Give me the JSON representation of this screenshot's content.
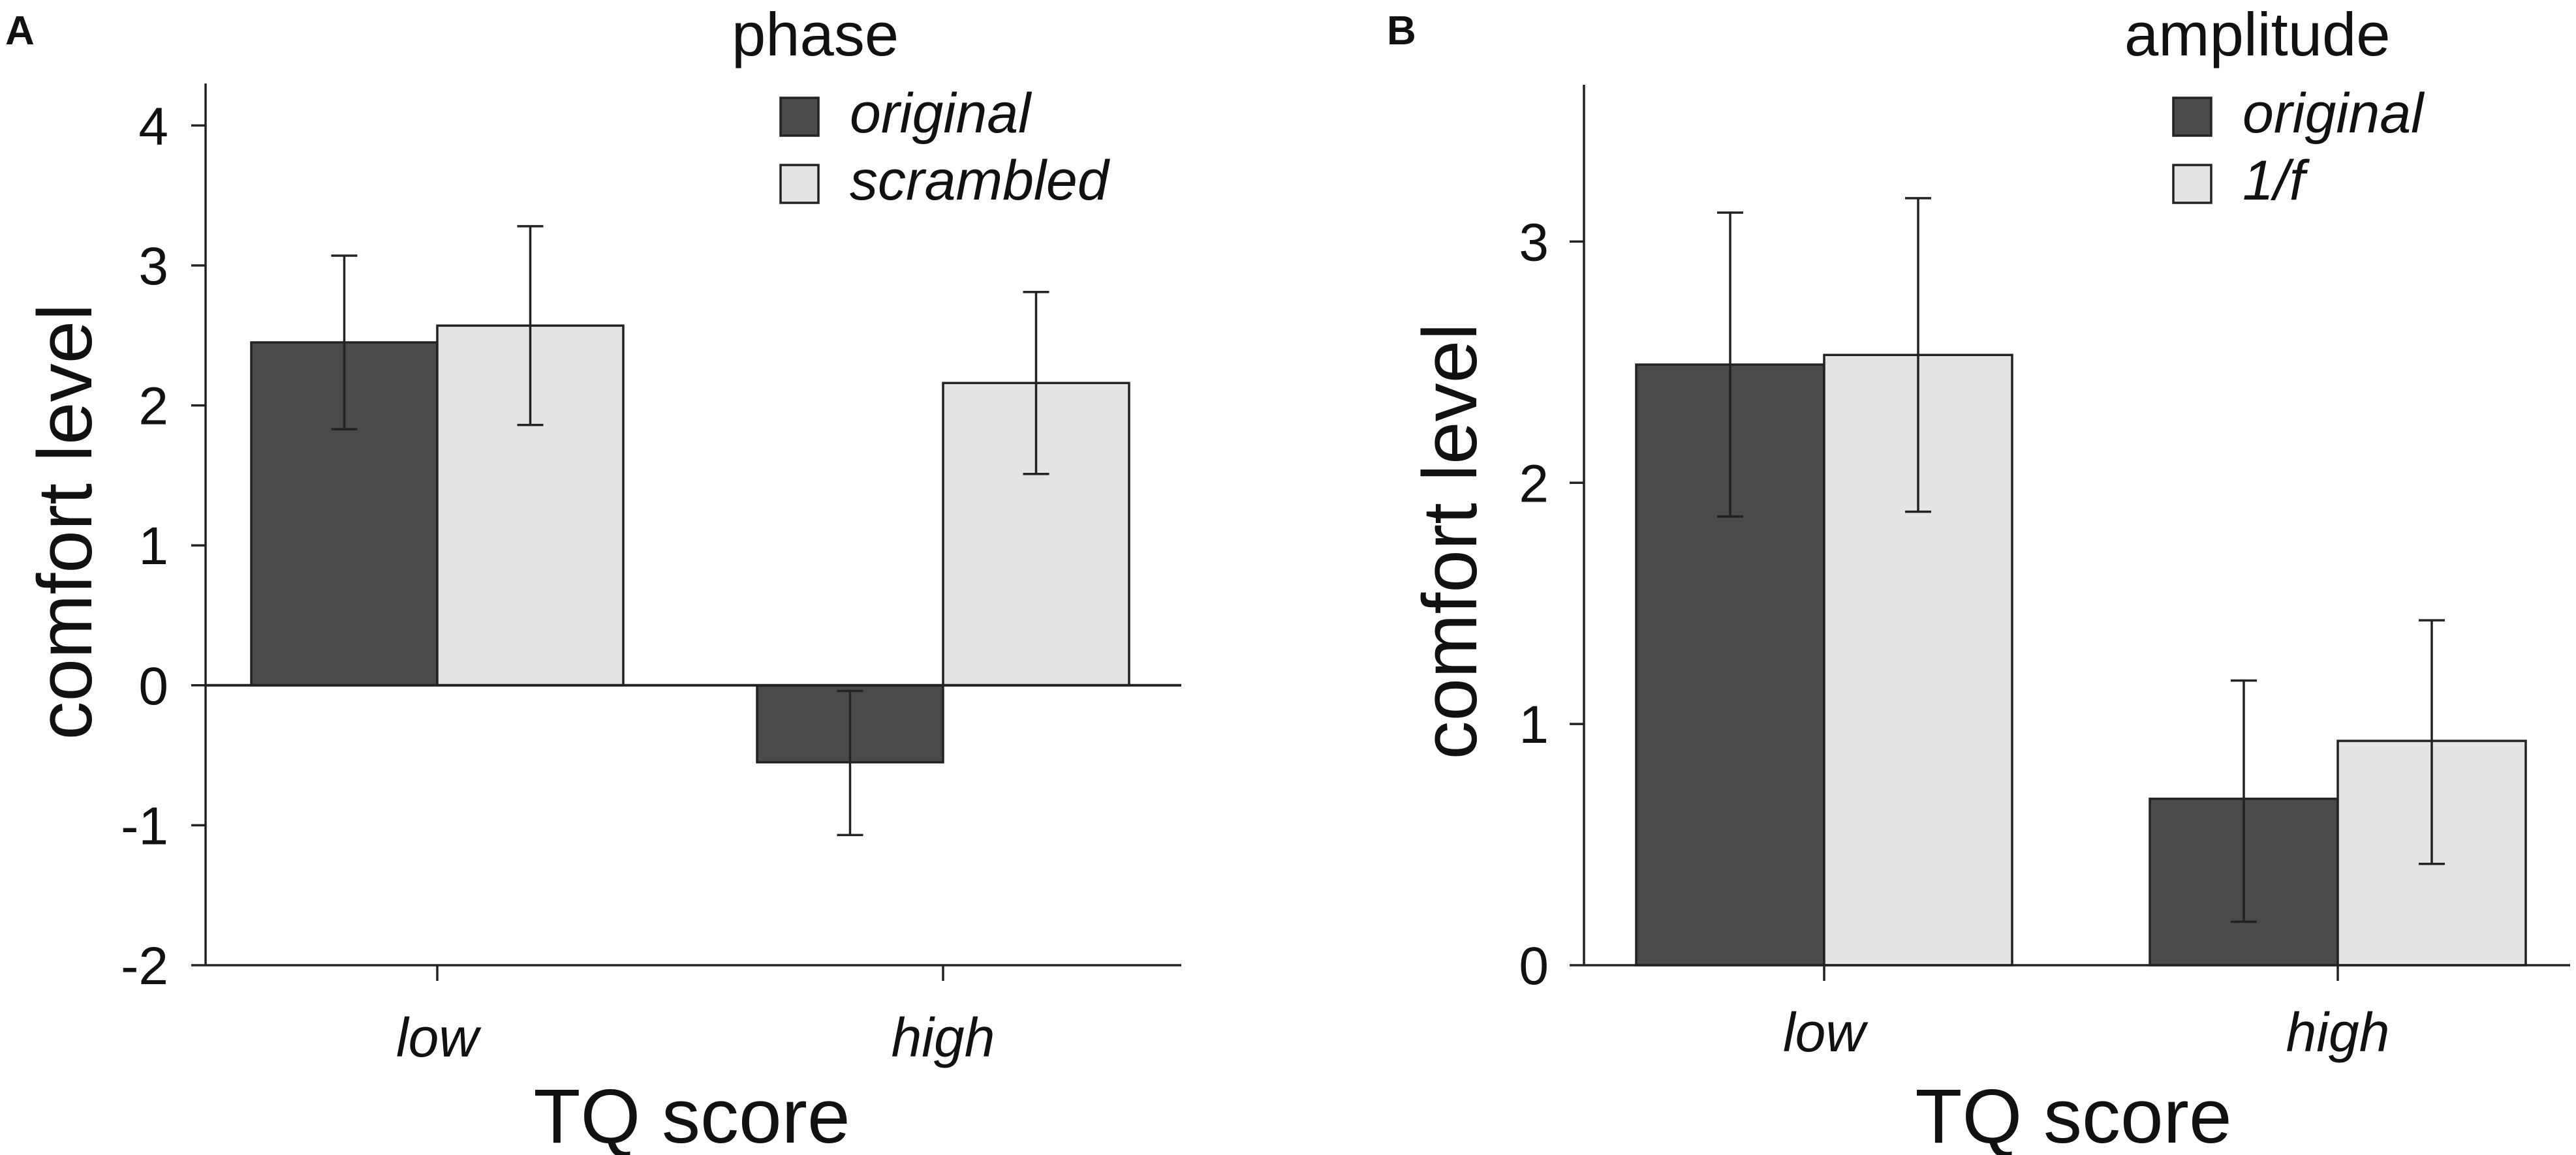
{
  "chart_data": [
    {
      "panel": "A",
      "type": "bar",
      "categories": [
        "low",
        "high"
      ],
      "xlabel": "TQ score",
      "ylabel": "comfort level",
      "ylim": [
        -2,
        4.3
      ],
      "yticks": [
        "-2",
        "-1",
        "0",
        "1",
        "2",
        "3",
        "4"
      ],
      "legend_title": "phase",
      "legend_position": "top-right",
      "series": [
        {
          "name": "original",
          "color": "#4a4a4a",
          "values": [
            2.45,
            -0.55
          ],
          "err_low": [
            1.83,
            -1.07
          ],
          "err_high": [
            3.07,
            -0.04
          ]
        },
        {
          "name": "scrambled",
          "color": "#e4e4e4",
          "values": [
            2.57,
            2.16
          ],
          "err_low": [
            1.86,
            1.51
          ],
          "err_high": [
            3.28,
            2.81
          ]
        }
      ]
    },
    {
      "panel": "B",
      "type": "bar",
      "categories": [
        "low",
        "high"
      ],
      "xlabel": "TQ score",
      "ylabel": "comfort level",
      "ylim": [
        0,
        3.65
      ],
      "yticks": [
        "0",
        "1",
        "2",
        "3"
      ],
      "legend_title": "amplitude",
      "legend_position": "top-right",
      "series": [
        {
          "name": "original",
          "color": "#4a4a4a",
          "values": [
            2.49,
            0.69
          ],
          "err_low": [
            1.86,
            0.18
          ],
          "err_high": [
            3.12,
            1.18
          ]
        },
        {
          "name": "1/f",
          "color": "#e4e4e4",
          "values": [
            2.53,
            0.93
          ],
          "err_low": [
            1.88,
            0.42
          ],
          "err_high": [
            3.18,
            1.43
          ]
        }
      ]
    }
  ]
}
